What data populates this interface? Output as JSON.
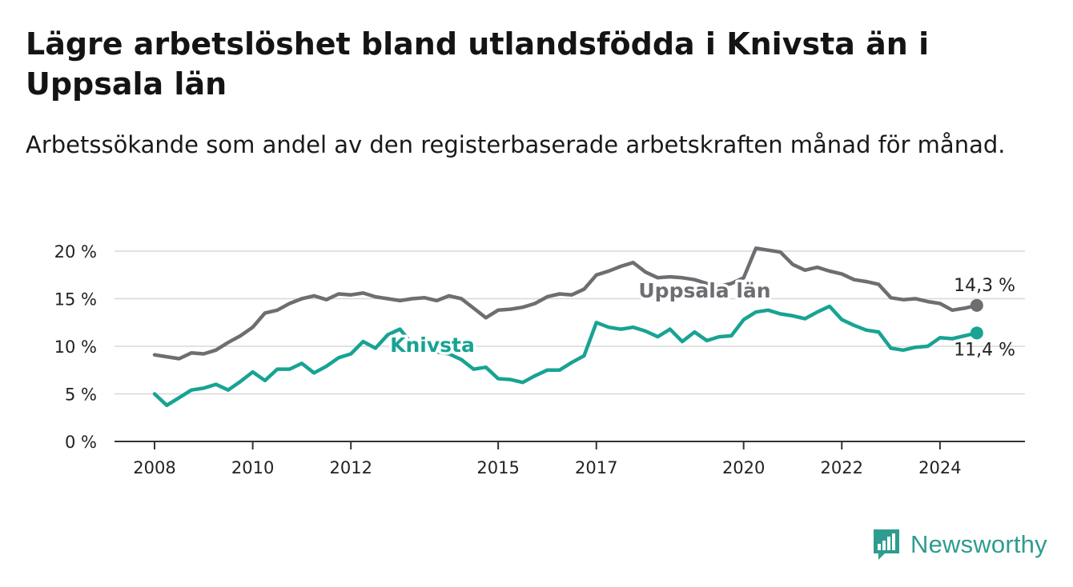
{
  "title": "Lägre arbetslöshet bland utlandsfödda i Knivsta än i Uppsala län",
  "subtitle": "Arbetssökande som andel av den registerbaserade arbetskraften månad för månad.",
  "brand": {
    "name": "Newsworthy",
    "icon": "newsworthy-logo-icon",
    "color": "#2e9c90"
  },
  "colors": {
    "uppsala": "#6e6d72",
    "knivsta": "#18a394",
    "grid": "#d8d8d8",
    "axis": "#333333"
  },
  "chart_data": {
    "type": "line",
    "title": "Lägre arbetslöshet bland utlandsfödda i Knivsta än i Uppsala län",
    "subtitle": "Arbetssökande som andel av den registerbaserade arbetskraften månad för månad.",
    "xlabel": "",
    "ylabel": "",
    "x_ticks": [
      "2008",
      "2010",
      "2012",
      "2015",
      "2017",
      "2020",
      "2022",
      "2024"
    ],
    "y_ticks": [
      "0 %",
      "5 %",
      "10 %",
      "15 %",
      "20 %"
    ],
    "ylim": [
      0,
      20
    ],
    "grid": true,
    "legend": "inline labels",
    "series": [
      {
        "name": "Uppsala län",
        "color": "#6e6d72",
        "end_label": "14,3 %",
        "points": [
          [
            "2008-01",
            9.1
          ],
          [
            "2008-04",
            8.9
          ],
          [
            "2008-07",
            8.7
          ],
          [
            "2008-10",
            9.3
          ],
          [
            "2009-01",
            9.2
          ],
          [
            "2009-04",
            9.6
          ],
          [
            "2009-07",
            10.4
          ],
          [
            "2009-10",
            11.1
          ],
          [
            "2010-01",
            12.0
          ],
          [
            "2010-04",
            13.5
          ],
          [
            "2010-07",
            13.8
          ],
          [
            "2010-10",
            14.5
          ],
          [
            "2011-01",
            15.0
          ],
          [
            "2011-04",
            15.3
          ],
          [
            "2011-07",
            14.9
          ],
          [
            "2011-10",
            15.5
          ],
          [
            "2012-01",
            15.4
          ],
          [
            "2012-04",
            15.6
          ],
          [
            "2012-07",
            15.2
          ],
          [
            "2012-10",
            15.0
          ],
          [
            "2013-01",
            14.8
          ],
          [
            "2013-04",
            15.0
          ],
          [
            "2013-07",
            15.1
          ],
          [
            "2013-10",
            14.8
          ],
          [
            "2014-01",
            15.3
          ],
          [
            "2014-04",
            15.0
          ],
          [
            "2014-07",
            14.0
          ],
          [
            "2014-10",
            13.0
          ],
          [
            "2015-01",
            13.8
          ],
          [
            "2015-04",
            13.9
          ],
          [
            "2015-07",
            14.1
          ],
          [
            "2015-10",
            14.5
          ],
          [
            "2016-01",
            15.2
          ],
          [
            "2016-04",
            15.5
          ],
          [
            "2016-07",
            15.4
          ],
          [
            "2016-10",
            16.0
          ],
          [
            "2017-01",
            17.5
          ],
          [
            "2017-04",
            17.9
          ],
          [
            "2017-07",
            18.4
          ],
          [
            "2017-10",
            18.8
          ],
          [
            "2018-01",
            17.8
          ],
          [
            "2018-04",
            17.2
          ],
          [
            "2018-07",
            17.3
          ],
          [
            "2018-10",
            17.2
          ],
          [
            "2019-01",
            17.0
          ],
          [
            "2019-04",
            16.6
          ],
          [
            "2019-07",
            16.3
          ],
          [
            "2019-10",
            16.6
          ],
          [
            "2020-01",
            17.2
          ],
          [
            "2020-04",
            20.3
          ],
          [
            "2020-07",
            20.1
          ],
          [
            "2020-10",
            19.9
          ],
          [
            "2021-01",
            18.6
          ],
          [
            "2021-04",
            18.0
          ],
          [
            "2021-07",
            18.3
          ],
          [
            "2021-10",
            17.9
          ],
          [
            "2022-01",
            17.6
          ],
          [
            "2022-04",
            17.0
          ],
          [
            "2022-07",
            16.8
          ],
          [
            "2022-10",
            16.5
          ],
          [
            "2023-01",
            15.1
          ],
          [
            "2023-04",
            14.9
          ],
          [
            "2023-07",
            15.0
          ],
          [
            "2023-10",
            14.7
          ],
          [
            "2024-01",
            14.5
          ],
          [
            "2024-04",
            13.8
          ],
          [
            "2024-07",
            14.0
          ],
          [
            "2024-10",
            14.3
          ]
        ]
      },
      {
        "name": "Knivsta",
        "color": "#18a394",
        "end_label": "11,4 %",
        "points": [
          [
            "2008-01",
            5.0
          ],
          [
            "2008-04",
            3.8
          ],
          [
            "2008-07",
            4.6
          ],
          [
            "2008-10",
            5.4
          ],
          [
            "2009-01",
            5.6
          ],
          [
            "2009-04",
            6.0
          ],
          [
            "2009-07",
            5.4
          ],
          [
            "2009-10",
            6.3
          ],
          [
            "2010-01",
            7.3
          ],
          [
            "2010-04",
            6.4
          ],
          [
            "2010-07",
            7.6
          ],
          [
            "2010-10",
            7.6
          ],
          [
            "2011-01",
            8.2
          ],
          [
            "2011-04",
            7.2
          ],
          [
            "2011-07",
            7.9
          ],
          [
            "2011-10",
            8.8
          ],
          [
            "2012-01",
            9.2
          ],
          [
            "2012-04",
            10.5
          ],
          [
            "2012-07",
            9.8
          ],
          [
            "2012-10",
            11.2
          ],
          [
            "2013-01",
            11.8
          ],
          [
            "2013-04",
            10.2
          ],
          [
            "2013-07",
            9.8
          ],
          [
            "2013-10",
            9.4
          ],
          [
            "2014-01",
            9.2
          ],
          [
            "2014-04",
            8.6
          ],
          [
            "2014-07",
            7.6
          ],
          [
            "2014-10",
            7.8
          ],
          [
            "2015-01",
            6.6
          ],
          [
            "2015-04",
            6.5
          ],
          [
            "2015-07",
            6.2
          ],
          [
            "2015-10",
            6.9
          ],
          [
            "2016-01",
            7.5
          ],
          [
            "2016-04",
            7.5
          ],
          [
            "2016-07",
            8.3
          ],
          [
            "2016-10",
            9.0
          ],
          [
            "2017-01",
            12.5
          ],
          [
            "2017-04",
            12.0
          ],
          [
            "2017-07",
            11.8
          ],
          [
            "2017-10",
            12.0
          ],
          [
            "2018-01",
            11.6
          ],
          [
            "2018-04",
            11.0
          ],
          [
            "2018-07",
            11.8
          ],
          [
            "2018-10",
            10.5
          ],
          [
            "2019-01",
            11.5
          ],
          [
            "2019-04",
            10.6
          ],
          [
            "2019-07",
            11.0
          ],
          [
            "2019-10",
            11.1
          ],
          [
            "2020-01",
            12.8
          ],
          [
            "2020-04",
            13.6
          ],
          [
            "2020-07",
            13.8
          ],
          [
            "2020-10",
            13.4
          ],
          [
            "2021-01",
            13.2
          ],
          [
            "2021-04",
            12.9
          ],
          [
            "2021-07",
            13.6
          ],
          [
            "2021-10",
            14.2
          ],
          [
            "2022-01",
            12.8
          ],
          [
            "2022-04",
            12.2
          ],
          [
            "2022-07",
            11.7
          ],
          [
            "2022-10",
            11.5
          ],
          [
            "2023-01",
            9.8
          ],
          [
            "2023-04",
            9.6
          ],
          [
            "2023-07",
            9.9
          ],
          [
            "2023-10",
            10.0
          ],
          [
            "2024-01",
            10.9
          ],
          [
            "2024-04",
            10.8
          ],
          [
            "2024-07",
            11.1
          ],
          [
            "2024-10",
            11.4
          ]
        ]
      }
    ]
  }
}
